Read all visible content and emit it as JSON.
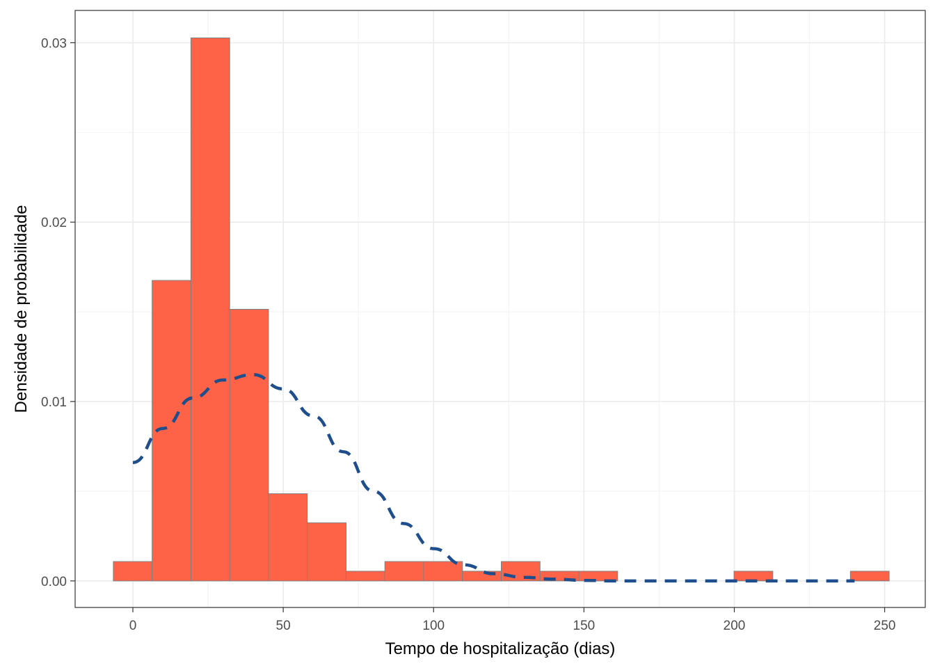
{
  "chart_data": {
    "type": "bar",
    "subtype": "histogram-with-density-curve",
    "title": "",
    "xlabel": "Tempo de hospitalização (dias)",
    "ylabel": "Densidade de probabilidade",
    "xlim": [
      -19.2,
      263.5
    ],
    "ylim": [
      -0.00148,
      0.0318
    ],
    "x_ticks": [
      0,
      50,
      100,
      150,
      200,
      250
    ],
    "x_tick_labels": [
      "0",
      "50",
      "100",
      "150",
      "200",
      "250"
    ],
    "y_ticks": [
      0.0,
      0.01,
      0.02,
      0.03
    ],
    "y_tick_labels": [
      "0.00",
      "0.01",
      "0.02",
      "0.03"
    ],
    "grid": true,
    "legend": "none",
    "bar_fill": "#ff6347",
    "bar_outline": "#7f7f7f",
    "curve_color": "#1f4e8c",
    "bins": [
      {
        "start": -6.5,
        "end": 6.4,
        "density": 0.00108
      },
      {
        "start": 6.4,
        "end": 19.3,
        "density": 0.01675
      },
      {
        "start": 19.3,
        "end": 32.2,
        "density": 0.03027
      },
      {
        "start": 32.2,
        "end": 45.1,
        "density": 0.01514
      },
      {
        "start": 45.1,
        "end": 58.0,
        "density": 0.00486
      },
      {
        "start": 58.0,
        "end": 70.9,
        "density": 0.00324
      },
      {
        "start": 70.9,
        "end": 83.8,
        "density": 0.00054
      },
      {
        "start": 83.8,
        "end": 96.7,
        "density": 0.00108
      },
      {
        "start": 96.7,
        "end": 109.6,
        "density": 0.00108
      },
      {
        "start": 109.6,
        "end": 122.5,
        "density": 0.00054
      },
      {
        "start": 122.5,
        "end": 135.4,
        "density": 0.00108
      },
      {
        "start": 135.4,
        "end": 148.3,
        "density": 0.00054
      },
      {
        "start": 148.3,
        "end": 161.2,
        "density": 0.00054
      },
      {
        "start": 199.9,
        "end": 212.8,
        "density": 0.00054
      },
      {
        "start": 238.6,
        "end": 251.5,
        "density": 0.00054
      }
    ],
    "density_curve": {
      "style": "dashed",
      "x": [
        0,
        10,
        20,
        30,
        40,
        50,
        60,
        70,
        80,
        90,
        100,
        110,
        120,
        130,
        140,
        150,
        160,
        170,
        180,
        190,
        200,
        210,
        220,
        230,
        240
      ],
      "y": [
        0.0066,
        0.0085,
        0.0102,
        0.0112,
        0.0115,
        0.0107,
        0.0092,
        0.0072,
        0.005,
        0.0032,
        0.0018,
        0.0009,
        0.0004,
        0.0002,
        0.0001,
        3e-05,
        0.0,
        0.0,
        0.0,
        0.0,
        0.0,
        0.0,
        0.0,
        0.0,
        0.0
      ]
    }
  }
}
